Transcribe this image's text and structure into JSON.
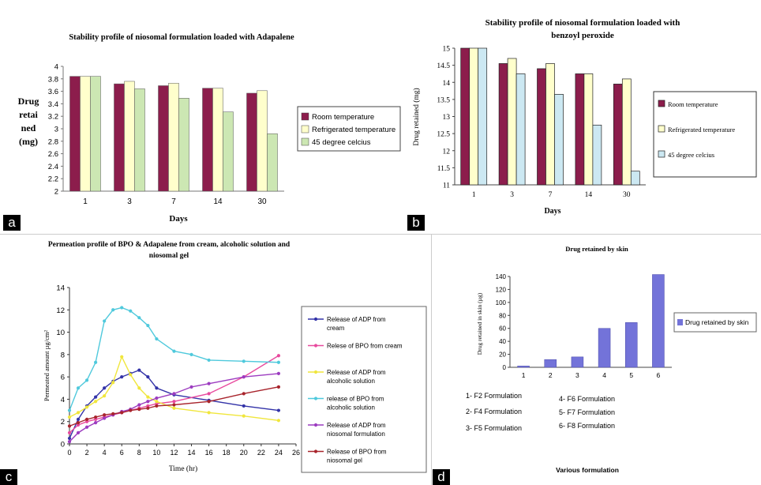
{
  "panel_letters": {
    "a": "a",
    "b": "b",
    "c": "c",
    "d": "d"
  },
  "colors": {
    "series_a": [
      "#8c1d4c",
      "#ffffcc",
      "#cce7b3"
    ],
    "series_b": [
      "#8c1d4c",
      "#ffffcc",
      "#cce8f2"
    ],
    "series_c": [
      "#3333a8",
      "#e84a9e",
      "#f0e63c",
      "#4fc9dc",
      "#9c3cc0",
      "#a8242c"
    ],
    "bar_d": "#7373d9"
  },
  "chart_data": [
    {
      "id": "a",
      "type": "bar",
      "title": "Stability profile of niosomal formulation loaded with Adapalene",
      "xlabel": "Days",
      "ylabel": [
        "Drug",
        "retai",
        "ned",
        "(mg)"
      ],
      "categories": [
        "1",
        "3",
        "7",
        "14",
        "30"
      ],
      "ylim": [
        2,
        4
      ],
      "yticks": [
        "2",
        "2.2",
        "2.4",
        "2.6",
        "2.8",
        "3",
        "3.2",
        "3.4",
        "3.6",
        "3.8",
        "4"
      ],
      "grid": false,
      "legend_position": "right",
      "series": [
        {
          "name": "Room temperature",
          "values": [
            3.84,
            3.72,
            3.69,
            3.65,
            3.57
          ]
        },
        {
          "name": "Refrigerated temperature",
          "values": [
            3.84,
            3.76,
            3.73,
            3.65,
            3.61
          ]
        },
        {
          "name": "45 degree celcius",
          "values": [
            3.84,
            3.64,
            3.49,
            3.27,
            2.92
          ]
        }
      ]
    },
    {
      "id": "b",
      "type": "bar",
      "title": "Stability profile of niosomal formulation loaded with benzoyl peroxide",
      "xlabel": "Days",
      "ylabel": "Drug retained (mg)",
      "categories": [
        "1",
        "3",
        "7",
        "14",
        "30"
      ],
      "ylim": [
        11,
        15
      ],
      "yticks": [
        "11",
        "11.5",
        "12",
        "12.5",
        "13",
        "13.5",
        "14",
        "14.5",
        "15"
      ],
      "grid": false,
      "legend_position": "right",
      "series": [
        {
          "name": "Room temperature",
          "values": [
            15,
            14.55,
            14.4,
            14.25,
            13.95
          ]
        },
        {
          "name": "Refrigerated temperature",
          "values": [
            15,
            14.7,
            14.55,
            14.25,
            14.1
          ]
        },
        {
          "name": "45 degree celcius",
          "values": [
            15,
            14.25,
            13.65,
            12.75,
            11.4
          ]
        }
      ]
    },
    {
      "id": "c",
      "type": "line",
      "title": "Permeation profile of BPO & Adapalene from cream, alcoholic solution and niosomal gel",
      "xlabel": "Time (hr)",
      "ylabel": "Permeated amount µg/cm²",
      "xlim": [
        0,
        26
      ],
      "ylim": [
        0,
        14
      ],
      "xticks": [
        "0",
        "2",
        "4",
        "6",
        "8",
        "10",
        "12",
        "14",
        "16",
        "18",
        "20",
        "22",
        "24",
        "26"
      ],
      "yticks": [
        "0",
        "2",
        "4",
        "6",
        "8",
        "10",
        "12",
        "14"
      ],
      "grid": false,
      "legend_position": "right",
      "series": [
        {
          "name": "Release of ADP from cream",
          "x": [
            0,
            1,
            2,
            3,
            4,
            5,
            6,
            7,
            8,
            9,
            10,
            12,
            16,
            20,
            24
          ],
          "y": [
            0.5,
            2.2,
            3.4,
            4.2,
            5,
            5.6,
            6,
            6.3,
            6.6,
            6,
            5,
            4.4,
            3.9,
            3.4,
            3
          ]
        },
        {
          "name": "Relese of BPO from cream",
          "x": [
            0,
            1,
            2,
            3,
            4,
            5,
            6,
            7,
            8,
            9,
            10,
            12,
            16,
            20,
            24
          ],
          "y": [
            1,
            1.7,
            2,
            2.2,
            2.4,
            2.6,
            2.8,
            3,
            3.2,
            3.4,
            3.6,
            3.8,
            4.5,
            6,
            7.9
          ]
        },
        {
          "name": "Release of ADP from alcoholic solution",
          "x": [
            0,
            1,
            2,
            3,
            4,
            5,
            6,
            7,
            8,
            9,
            10,
            12,
            16,
            20,
            24
          ],
          "y": [
            2.4,
            2.8,
            3.3,
            3.8,
            4.3,
            5.5,
            7.8,
            6.2,
            5,
            4.2,
            3.8,
            3.2,
            2.8,
            2.5,
            2.1
          ]
        },
        {
          "name": "release of BPO from alcoholic solution",
          "x": [
            0,
            1,
            2,
            3,
            4,
            5,
            6,
            7,
            8,
            9,
            10,
            12,
            14,
            16,
            20,
            24
          ],
          "y": [
            3,
            5,
            5.7,
            7.3,
            11,
            12,
            12.2,
            11.9,
            11.3,
            10.6,
            9.4,
            8.3,
            8,
            7.5,
            7.4,
            7.3
          ]
        },
        {
          "name": "Release of ADP from niosomal formulation",
          "x": [
            0,
            1,
            2,
            3,
            4,
            5,
            6,
            7,
            8,
            9,
            10,
            12,
            14,
            16,
            20,
            24
          ],
          "y": [
            0.2,
            1,
            1.5,
            1.9,
            2.3,
            2.6,
            2.9,
            3.1,
            3.5,
            3.8,
            4.1,
            4.5,
            5.1,
            5.4,
            6,
            6.3
          ]
        },
        {
          "name": "Release of BPO from niosomal gel",
          "x": [
            0,
            1,
            2,
            3,
            4,
            5,
            6,
            7,
            8,
            9,
            10,
            12,
            16,
            20,
            24
          ],
          "y": [
            1.6,
            1.9,
            2.2,
            2.4,
            2.6,
            2.7,
            2.8,
            3,
            3.1,
            3.2,
            3.4,
            3.5,
            3.8,
            4.5,
            5.1
          ]
        }
      ]
    },
    {
      "id": "d",
      "type": "bar",
      "title": "Drug retained by skin",
      "xlabel": "Various formulation",
      "ylabel": "Drug retained in skin (µg)",
      "categories": [
        "1",
        "2",
        "3",
        "4",
        "5",
        "6"
      ],
      "ylim": [
        0,
        140
      ],
      "yticks": [
        "0",
        "20",
        "40",
        "60",
        "80",
        "100",
        "120",
        "140"
      ],
      "grid": false,
      "legend_position": "right",
      "series": [
        {
          "name": "Drug retained by skin",
          "values": [
            2,
            12,
            16,
            60,
            69,
            143
          ]
        }
      ],
      "annotations": [
        "1- F2 Formulation",
        "2- F4 Formulation",
        "3- F5 Formulation",
        "4- F6 Formulation",
        "5- F7 Formulation",
        "6- F8 Formulation"
      ]
    }
  ]
}
